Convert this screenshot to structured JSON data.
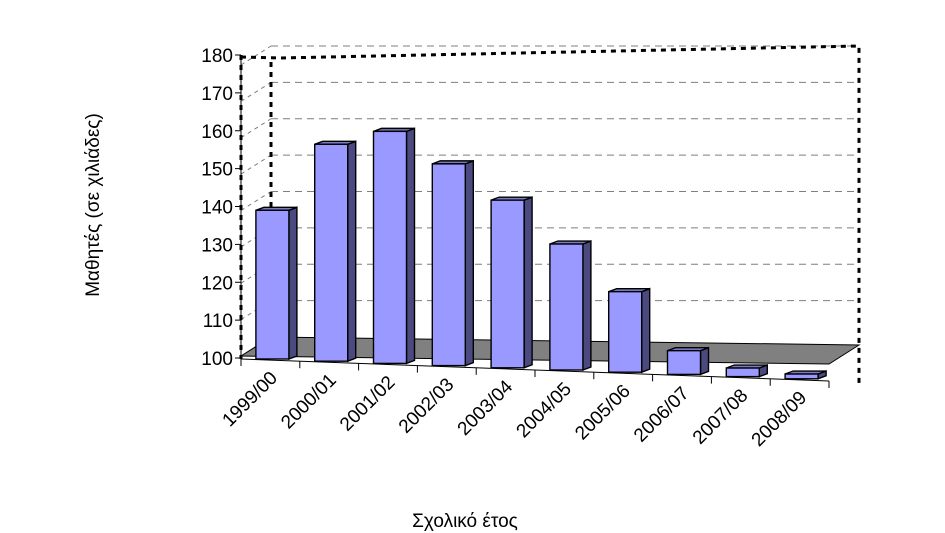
{
  "chart_data": {
    "type": "bar",
    "title": "",
    "xlabel": "Σχολικό έτος",
    "ylabel": "Μαθητές (σε χιλιάδες)",
    "categories": [
      "1999/00",
      "2000/01",
      "2001/02",
      "2002/03",
      "2003/04",
      "2004/05",
      "2005/06",
      "2006/07",
      "2007/08",
      "2008/09"
    ],
    "values": [
      139,
      157,
      161,
      153,
      144,
      133,
      121,
      106,
      102,
      101
    ],
    "ylim": [
      100,
      180
    ],
    "yticks": [
      "100",
      "110",
      "120",
      "130",
      "140",
      "150",
      "160",
      "170",
      "180"
    ],
    "grid": true,
    "legend": "none",
    "colors": {
      "bar_front": "#9999ff",
      "bar_side": "#4a4a80",
      "bar_top": "#7b7bc4",
      "floor": "#808080",
      "gridline": "#7f7f7f",
      "frame": "#000000"
    }
  }
}
